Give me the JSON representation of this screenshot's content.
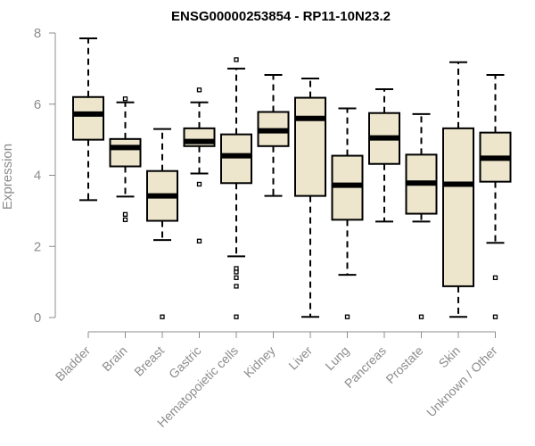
{
  "chart_data": {
    "type": "boxplot",
    "title": "ENSG00000253854 - RP11-10N23.2",
    "ylabel": "Expression",
    "xlabel": "",
    "ylim": [
      0,
      8
    ],
    "yticks": [
      0,
      2,
      4,
      6,
      8
    ],
    "grid": false,
    "box_color": "#ede6cc",
    "line_color": "#000000",
    "median_color": "#000000",
    "axis_color": "#8c8c8c",
    "categories": [
      "Bladder",
      "Brain",
      "Breast",
      "Gastric",
      "Hematopoietic cells",
      "Kidney",
      "Liver",
      "Lung",
      "Pancreas",
      "Prostate",
      "Skin",
      "Unknown / Other"
    ],
    "boxes": [
      {
        "name": "Bladder",
        "whisker_low": 3.3,
        "q1": 5.0,
        "median": 5.72,
        "q3": 6.2,
        "whisker_high": 7.85,
        "outliers": []
      },
      {
        "name": "Brain",
        "whisker_low": 3.4,
        "q1": 4.25,
        "median": 4.78,
        "q3": 5.02,
        "whisker_high": 6.05,
        "outliers": [
          6.15,
          2.9,
          2.75
        ]
      },
      {
        "name": "Breast",
        "whisker_low": 2.18,
        "q1": 2.72,
        "median": 3.42,
        "q3": 4.12,
        "whisker_high": 5.3,
        "outliers": [
          0.02
        ]
      },
      {
        "name": "Gastric",
        "whisker_low": 4.05,
        "q1": 4.82,
        "median": 4.95,
        "q3": 5.32,
        "whisker_high": 6.05,
        "outliers": [
          6.4,
          3.75,
          2.15
        ]
      },
      {
        "name": "Hematopoietic cells",
        "whisker_low": 1.72,
        "q1": 3.78,
        "median": 4.55,
        "q3": 5.15,
        "whisker_high": 7.0,
        "outliers": [
          7.25,
          1.38,
          1.28,
          1.12,
          0.88,
          0.02
        ]
      },
      {
        "name": "Kidney",
        "whisker_low": 3.42,
        "q1": 4.82,
        "median": 5.25,
        "q3": 5.78,
        "whisker_high": 6.82,
        "outliers": []
      },
      {
        "name": "Liver",
        "whisker_low": 0.02,
        "q1": 3.42,
        "median": 5.6,
        "q3": 6.18,
        "whisker_high": 6.72,
        "outliers": []
      },
      {
        "name": "Lung",
        "whisker_low": 1.2,
        "q1": 2.75,
        "median": 3.72,
        "q3": 4.55,
        "whisker_high": 5.88,
        "outliers": [
          0.02
        ]
      },
      {
        "name": "Pancreas",
        "whisker_low": 2.7,
        "q1": 4.32,
        "median": 5.05,
        "q3": 5.75,
        "whisker_high": 6.42,
        "outliers": []
      },
      {
        "name": "Prostate",
        "whisker_low": 2.7,
        "q1": 2.92,
        "median": 3.78,
        "q3": 4.58,
        "whisker_high": 5.72,
        "outliers": [
          0.02
        ]
      },
      {
        "name": "Skin",
        "whisker_low": 0.02,
        "q1": 0.88,
        "median": 3.75,
        "q3": 5.32,
        "whisker_high": 7.18,
        "outliers": []
      },
      {
        "name": "Unknown / Other",
        "whisker_low": 2.1,
        "q1": 3.82,
        "median": 4.48,
        "q3": 5.2,
        "whisker_high": 6.82,
        "outliers": [
          1.12,
          0.02
        ]
      }
    ]
  }
}
